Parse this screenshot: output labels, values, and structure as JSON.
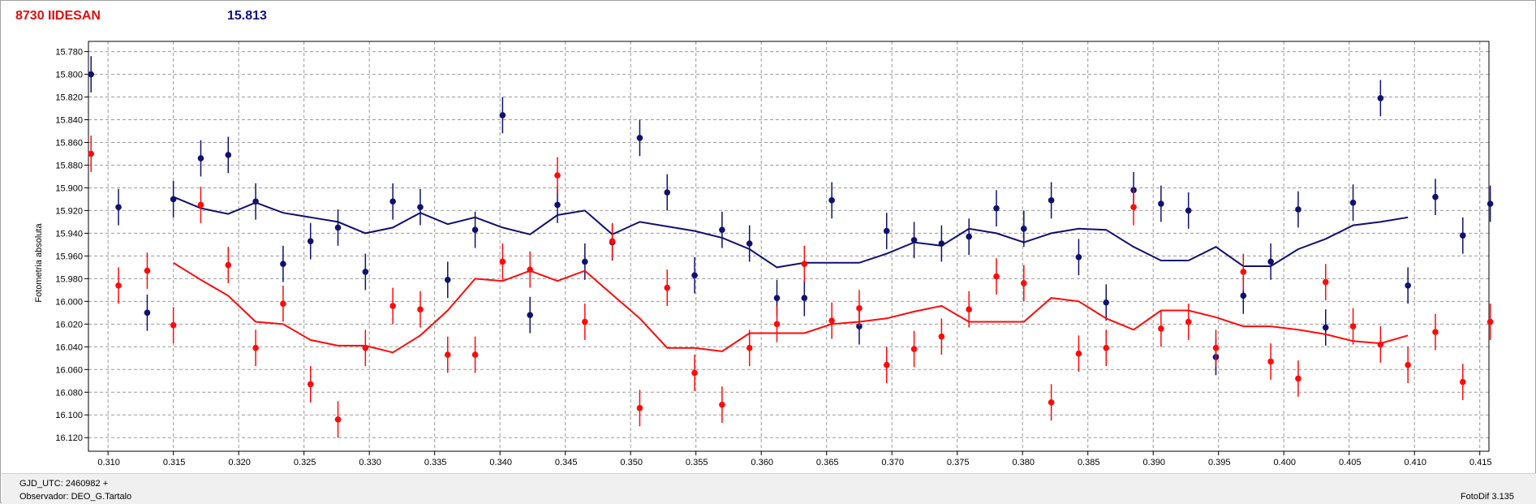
{
  "header": {
    "object": "8730 IIDESAN",
    "magnitude": "15.813"
  },
  "footer": {
    "gjd": "GJD_UTC: 2460982 +",
    "observer": "Observador: DEO_G.Tartalo",
    "software": "FotoDif 3.135"
  },
  "chart_data": {
    "type": "scatter",
    "title": "",
    "xlabel": "",
    "ylabel": "Fotometria absoluta",
    "xlim": [
      0.3085,
      0.4157
    ],
    "ylim": [
      16.132,
      15.771
    ],
    "y_inverted": true,
    "grid": true,
    "x_ticks": [
      "0.310",
      "0.315",
      "0.320",
      "0.325",
      "0.330",
      "0.335",
      "0.340",
      "0.345",
      "0.350",
      "0.355",
      "0.360",
      "0.365",
      "0.370",
      "0.375",
      "0.380",
      "0.385",
      "0.390",
      "0.395",
      "0.400",
      "0.405",
      "0.410",
      "0.415"
    ],
    "y_ticks": [
      "15.780",
      "15.800",
      "15.820",
      "15.840",
      "15.860",
      "15.880",
      "15.900",
      "15.920",
      "15.940",
      "15.960",
      "15.980",
      "16.000",
      "16.020",
      "16.040",
      "16.060",
      "16.080",
      "16.100",
      "16.120"
    ],
    "colors": {
      "blue": "#101070",
      "red": "#ff0a0a"
    },
    "series": [
      {
        "color": "blue",
        "error": 0.016,
        "points": [
          [
            0.3087,
            15.8
          ],
          [
            0.3108,
            15.917
          ],
          [
            0.313,
            16.01
          ],
          [
            0.315,
            15.91
          ],
          [
            0.3171,
            15.874
          ],
          [
            0.3192,
            15.871
          ],
          [
            0.3213,
            15.912
          ],
          [
            0.3234,
            15.967
          ],
          [
            0.3255,
            15.947
          ],
          [
            0.3276,
            15.935
          ],
          [
            0.3297,
            15.974
          ],
          [
            0.3318,
            15.912
          ],
          [
            0.3339,
            15.917
          ],
          [
            0.336,
            15.981
          ],
          [
            0.3381,
            15.937
          ],
          [
            0.3402,
            15.836
          ],
          [
            0.3423,
            16.012
          ],
          [
            0.3444,
            15.915
          ],
          [
            0.3465,
            15.965
          ],
          [
            0.3486,
            15.948
          ],
          [
            0.3507,
            15.856
          ],
          [
            0.3528,
            15.904
          ],
          [
            0.3549,
            15.977
          ],
          [
            0.357,
            15.937
          ],
          [
            0.3591,
            15.949
          ],
          [
            0.3612,
            15.997
          ],
          [
            0.3633,
            15.997
          ],
          [
            0.3654,
            15.911
          ],
          [
            0.3675,
            16.022
          ],
          [
            0.3696,
            15.938
          ],
          [
            0.3717,
            15.946
          ],
          [
            0.3738,
            15.949
          ],
          [
            0.3759,
            15.943
          ],
          [
            0.378,
            15.918
          ],
          [
            0.3801,
            15.936
          ],
          [
            0.3822,
            15.911
          ],
          [
            0.3843,
            15.961
          ],
          [
            0.3864,
            16.001
          ],
          [
            0.3885,
            15.902
          ],
          [
            0.3906,
            15.914
          ],
          [
            0.3927,
            15.92
          ],
          [
            0.3948,
            16.049
          ],
          [
            0.3969,
            15.995
          ],
          [
            0.399,
            15.965
          ],
          [
            0.4011,
            15.919
          ],
          [
            0.4032,
            16.023
          ],
          [
            0.4053,
            15.913
          ],
          [
            0.4074,
            15.821
          ],
          [
            0.4095,
            15.986
          ],
          [
            0.4116,
            15.908
          ],
          [
            0.4137,
            15.942
          ],
          [
            0.4158,
            15.914
          ]
        ]
      },
      {
        "color": "blue",
        "type": "line",
        "points": [
          [
            0.315,
            15.908
          ],
          [
            0.3171,
            15.918
          ],
          [
            0.3192,
            15.923
          ],
          [
            0.3213,
            15.913
          ],
          [
            0.3234,
            15.922
          ],
          [
            0.3255,
            15.926
          ],
          [
            0.3276,
            15.93
          ],
          [
            0.3297,
            15.94
          ],
          [
            0.3318,
            15.935
          ],
          [
            0.3339,
            15.922
          ],
          [
            0.336,
            15.932
          ],
          [
            0.3381,
            15.926
          ],
          [
            0.3402,
            15.935
          ],
          [
            0.3423,
            15.941
          ],
          [
            0.3444,
            15.924
          ],
          [
            0.3465,
            15.92
          ],
          [
            0.3486,
            15.941
          ],
          [
            0.3507,
            15.93
          ],
          [
            0.3528,
            15.934
          ],
          [
            0.3549,
            15.938
          ],
          [
            0.357,
            15.944
          ],
          [
            0.3591,
            15.954
          ],
          [
            0.3612,
            15.97
          ],
          [
            0.3633,
            15.966
          ],
          [
            0.3654,
            15.966
          ],
          [
            0.3675,
            15.966
          ],
          [
            0.3696,
            15.958
          ],
          [
            0.3717,
            15.948
          ],
          [
            0.3738,
            15.951
          ],
          [
            0.3759,
            15.936
          ],
          [
            0.378,
            15.94
          ],
          [
            0.3801,
            15.948
          ],
          [
            0.3822,
            15.94
          ],
          [
            0.3843,
            15.936
          ],
          [
            0.3864,
            15.937
          ],
          [
            0.3885,
            15.952
          ],
          [
            0.3906,
            15.964
          ],
          [
            0.3927,
            15.964
          ],
          [
            0.3948,
            15.952
          ],
          [
            0.3969,
            15.969
          ],
          [
            0.399,
            15.969
          ],
          [
            0.4011,
            15.954
          ],
          [
            0.4032,
            15.945
          ],
          [
            0.4053,
            15.933
          ],
          [
            0.4074,
            15.93
          ],
          [
            0.4095,
            15.926
          ]
        ]
      },
      {
        "color": "red",
        "error": 0.016,
        "points": [
          [
            0.3087,
            15.87
          ],
          [
            0.3108,
            15.986
          ],
          [
            0.313,
            15.973
          ],
          [
            0.315,
            16.021
          ],
          [
            0.3171,
            15.915
          ],
          [
            0.3192,
            15.968
          ],
          [
            0.3213,
            16.041
          ],
          [
            0.3234,
            16.002
          ],
          [
            0.3255,
            16.073
          ],
          [
            0.3276,
            16.104
          ],
          [
            0.3297,
            16.041
          ],
          [
            0.3318,
            16.004
          ],
          [
            0.3339,
            16.007
          ],
          [
            0.336,
            16.047
          ],
          [
            0.3381,
            16.047
          ],
          [
            0.3402,
            15.965
          ],
          [
            0.3423,
            15.972
          ],
          [
            0.3444,
            15.889
          ],
          [
            0.3465,
            16.018
          ],
          [
            0.3486,
            15.947
          ],
          [
            0.3507,
            16.094
          ],
          [
            0.3528,
            15.988
          ],
          [
            0.3549,
            16.063
          ],
          [
            0.357,
            16.091
          ],
          [
            0.3591,
            16.041
          ],
          [
            0.3612,
            16.02
          ],
          [
            0.3633,
            15.967
          ],
          [
            0.3654,
            16.017
          ],
          [
            0.3675,
            16.006
          ],
          [
            0.3696,
            16.056
          ],
          [
            0.3717,
            16.042
          ],
          [
            0.3738,
            16.031
          ],
          [
            0.3759,
            16.007
          ],
          [
            0.378,
            15.978
          ],
          [
            0.3801,
            15.984
          ],
          [
            0.3822,
            16.089
          ],
          [
            0.3843,
            16.046
          ],
          [
            0.3864,
            16.041
          ],
          [
            0.3885,
            15.917
          ],
          [
            0.3906,
            16.024
          ],
          [
            0.3927,
            16.018
          ],
          [
            0.3948,
            16.041
          ],
          [
            0.3969,
            15.974
          ],
          [
            0.399,
            16.053
          ],
          [
            0.4011,
            16.068
          ],
          [
            0.4032,
            15.983
          ],
          [
            0.4053,
            16.022
          ],
          [
            0.4074,
            16.038
          ],
          [
            0.4095,
            16.056
          ],
          [
            0.4116,
            16.027
          ],
          [
            0.4137,
            16.071
          ],
          [
            0.4158,
            16.018
          ]
        ]
      },
      {
        "color": "red",
        "type": "line",
        "points": [
          [
            0.315,
            15.966
          ],
          [
            0.3171,
            15.981
          ],
          [
            0.3192,
            15.995
          ],
          [
            0.3213,
            16.018
          ],
          [
            0.3234,
            16.02
          ],
          [
            0.3255,
            16.034
          ],
          [
            0.3276,
            16.039
          ],
          [
            0.3297,
            16.039
          ],
          [
            0.3318,
            16.045
          ],
          [
            0.3339,
            16.03
          ],
          [
            0.336,
            16.008
          ],
          [
            0.3381,
            15.98
          ],
          [
            0.3402,
            15.982
          ],
          [
            0.3423,
            15.973
          ],
          [
            0.3444,
            15.982
          ],
          [
            0.3465,
            15.973
          ],
          [
            0.3486,
            15.994
          ],
          [
            0.3507,
            16.015
          ],
          [
            0.3528,
            16.041
          ],
          [
            0.3549,
            16.041
          ],
          [
            0.357,
            16.044
          ],
          [
            0.3591,
            16.028
          ],
          [
            0.3612,
            16.028
          ],
          [
            0.3633,
            16.028
          ],
          [
            0.3654,
            16.02
          ],
          [
            0.3675,
            16.018
          ],
          [
            0.3696,
            16.015
          ],
          [
            0.3717,
            16.009
          ],
          [
            0.3738,
            16.004
          ],
          [
            0.3759,
            16.018
          ],
          [
            0.378,
            16.018
          ],
          [
            0.3801,
            16.018
          ],
          [
            0.3822,
            15.997
          ],
          [
            0.3843,
            16.0
          ],
          [
            0.3864,
            16.015
          ],
          [
            0.3885,
            16.025
          ],
          [
            0.3906,
            16.008
          ],
          [
            0.3927,
            16.008
          ],
          [
            0.3948,
            16.014
          ],
          [
            0.3969,
            16.022
          ],
          [
            0.399,
            16.022
          ],
          [
            0.4011,
            16.025
          ],
          [
            0.4032,
            16.029
          ],
          [
            0.4053,
            16.035
          ],
          [
            0.4074,
            16.037
          ],
          [
            0.4095,
            16.03
          ]
        ]
      }
    ]
  }
}
